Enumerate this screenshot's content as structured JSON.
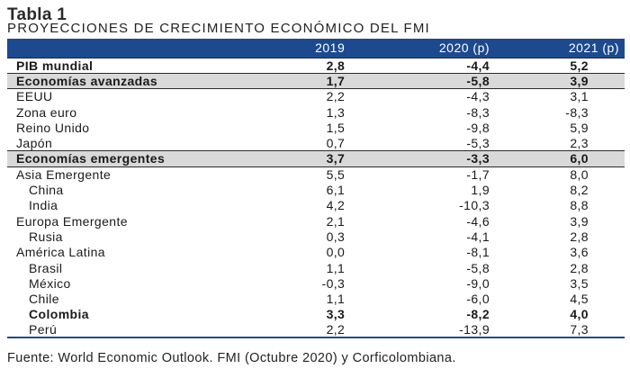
{
  "title": "Tabla 1",
  "subtitle": "PROYECCIONES DE CRECIMIENTO ECONÓMICO DEL FMI",
  "headers": [
    "",
    "2019",
    "2020 (p)",
    "2021 (p)"
  ],
  "rows": [
    {
      "label": "PIB mundial",
      "values": [
        "2,8",
        "-4,4",
        "5,2"
      ],
      "bold": true,
      "shade": false,
      "indent": false
    },
    {
      "label": "Economías avanzadas",
      "values": [
        "1,7",
        "-5,8",
        "3,9"
      ],
      "bold": true,
      "shade": true,
      "indent": false
    },
    {
      "label": "EEUU",
      "values": [
        "2,2",
        "-4,3",
        "3,1"
      ],
      "bold": false,
      "shade": false,
      "indent": false
    },
    {
      "label": "Zona euro",
      "values": [
        "1,3",
        "-8,3",
        "-8,3"
      ],
      "bold": false,
      "shade": false,
      "indent": false
    },
    {
      "label": "Reino Unido",
      "values": [
        "1,5",
        "-9,8",
        "5,9"
      ],
      "bold": false,
      "shade": false,
      "indent": false
    },
    {
      "label": "Japón",
      "values": [
        "0,7",
        "-5,3",
        "2,3"
      ],
      "bold": false,
      "shade": false,
      "indent": false
    },
    {
      "label": "Economías emergentes",
      "values": [
        "3,7",
        "-3,3",
        "6,0"
      ],
      "bold": true,
      "shade": true,
      "indent": false
    },
    {
      "label": "Asia Emergente",
      "values": [
        "5,5",
        "-1,7",
        "8,0"
      ],
      "bold": false,
      "shade": false,
      "indent": false
    },
    {
      "label": "China",
      "values": [
        "6,1",
        "1,9",
        "8,2"
      ],
      "bold": false,
      "shade": false,
      "indent": true
    },
    {
      "label": "India",
      "values": [
        "4,2",
        "-10,3",
        "8,8"
      ],
      "bold": false,
      "shade": false,
      "indent": true
    },
    {
      "label": "Europa Emergente",
      "values": [
        "2,1",
        "-4,6",
        "3,9"
      ],
      "bold": false,
      "shade": false,
      "indent": false
    },
    {
      "label": "Rusia",
      "values": [
        "0,3",
        "-4,1",
        "2,8"
      ],
      "bold": false,
      "shade": false,
      "indent": true
    },
    {
      "label": "América Latina",
      "values": [
        "0,0",
        "-8,1",
        "3,6"
      ],
      "bold": false,
      "shade": false,
      "indent": false
    },
    {
      "label": "Brasil",
      "values": [
        "1,1",
        "-5,8",
        "2,8"
      ],
      "bold": false,
      "shade": false,
      "indent": true
    },
    {
      "label": "México",
      "values": [
        "-0,3",
        "-9,0",
        "3,5"
      ],
      "bold": false,
      "shade": false,
      "indent": true
    },
    {
      "label": "Chile",
      "values": [
        "1,1",
        "-6,0",
        "4,5"
      ],
      "bold": false,
      "shade": false,
      "indent": true
    },
    {
      "label": "Colombia",
      "values": [
        "3,3",
        "-8,2",
        "4,0"
      ],
      "bold": true,
      "shade": false,
      "indent": true
    },
    {
      "label": "Perú",
      "values": [
        "2,2",
        "-13,9",
        "7,3"
      ],
      "bold": false,
      "shade": false,
      "indent": true
    }
  ],
  "footer": "Fuente: World Economic Outlook. FMI (Octubre 2020) y Corficolombiana.",
  "colors": {
    "header_bg": "#1d4a8e",
    "shade_bg": "#d9d9d9"
  }
}
